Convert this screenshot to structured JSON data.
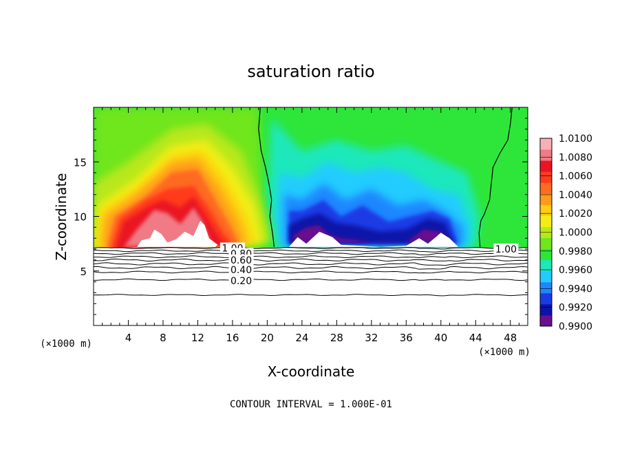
{
  "chart_data": {
    "type": "heatmap",
    "title": "saturation ratio",
    "xlabel": "X-coordinate",
    "ylabel": "Z-coordinate",
    "x_unit": "(×1000 m)",
    "xlim": [
      0,
      50
    ],
    "ylim": [
      0,
      20
    ],
    "x_ticks": [
      4,
      8,
      12,
      16,
      20,
      24,
      28,
      32,
      36,
      40,
      44,
      48
    ],
    "y_ticks": [
      5,
      10,
      15
    ],
    "colorbar": {
      "min": 0.99,
      "max": 1.01,
      "labels": [
        "1.0100",
        "1.0080",
        "1.0060",
        "1.0040",
        "1.0020",
        "1.0000",
        "0.9980",
        "0.9960",
        "0.9940",
        "0.9920",
        "0.9900"
      ],
      "colors": [
        "#6a0f8f",
        "#0d12a8",
        "#1c3ae4",
        "#1f86ff",
        "#22ccff",
        "#1ce8bb",
        "#2ee63a",
        "#6fe61e",
        "#b8e81a",
        "#f2ee12",
        "#ffcc10",
        "#ff9a1a",
        "#ff6b20",
        "#ff3a1e",
        "#ea1424",
        "#f07a86",
        "#f7b0b8"
      ]
    },
    "contour_labels": [
      {
        "label": "1.00",
        "x": 16.0,
        "y": 7.1
      },
      {
        "label": "0.80",
        "x": 17.0,
        "y": 6.6
      },
      {
        "label": "0.60",
        "x": 17.0,
        "y": 6.0
      },
      {
        "label": "0.40",
        "x": 17.0,
        "y": 5.1
      },
      {
        "label": "0.20",
        "x": 17.0,
        "y": 4.1
      },
      {
        "label": "1.00",
        "x": 47.5,
        "y": 7.0
      }
    ],
    "contour_interval": "CONTOUR INTERVAL = 1.000E-01"
  }
}
